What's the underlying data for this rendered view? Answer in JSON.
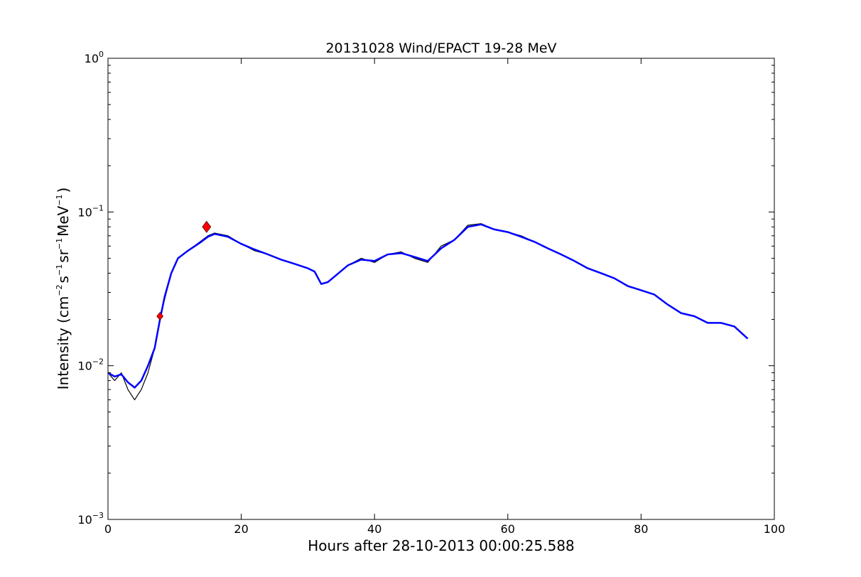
{
  "chart_data": {
    "type": "line",
    "title": "20131028 Wind/EPACT 19-28 MeV",
    "xlabel": "Hours after 28-10-2013 00:00:25.588",
    "ylabel": {
      "prefix": "Intensity (cm",
      "exp1": "−2",
      "part2": "s",
      "exp2": "−1",
      "part3": "sr",
      "exp3": "−1",
      "part4": "MeV",
      "exp4": "−1",
      "suffix": ")"
    },
    "xlim": [
      0,
      100
    ],
    "ylim": [
      0.001,
      1
    ],
    "yscale": "log",
    "grid": false,
    "x_ticks": [
      0,
      20,
      40,
      60,
      80,
      100
    ],
    "x_tick_labels": [
      "0",
      "20",
      "40",
      "60",
      "80",
      "100"
    ],
    "y_ticks": [
      {
        "value": 1,
        "base": "10",
        "exp": "0"
      },
      {
        "value": 0.1,
        "base": "10",
        "exp": "−1"
      },
      {
        "value": 0.01,
        "base": "10",
        "exp": "−2"
      },
      {
        "value": 0.001,
        "base": "10",
        "exp": "−3"
      }
    ],
    "series": [
      {
        "style": "raw",
        "color": "#000000",
        "x": [
          0,
          1,
          2,
          3,
          4,
          5,
          6,
          7,
          7.8,
          8.5,
          9.5,
          10.5,
          12,
          14,
          15,
          16,
          18,
          20,
          22,
          24,
          26,
          28,
          30,
          31,
          32,
          33,
          34,
          36,
          38,
          40,
          42,
          44,
          46,
          48,
          50,
          52,
          54,
          56,
          58,
          60,
          62,
          64,
          66,
          68,
          70,
          72,
          74,
          76,
          78,
          80,
          82,
          84,
          86,
          88,
          90,
          92,
          94,
          96
        ],
        "y": [
          0.009,
          0.008,
          0.009,
          0.007,
          0.006,
          0.007,
          0.009,
          0.013,
          0.02,
          0.027,
          0.04,
          0.05,
          0.056,
          0.065,
          0.07,
          0.073,
          0.07,
          0.062,
          0.056,
          0.053,
          0.049,
          0.046,
          0.043,
          0.041,
          0.034,
          0.035,
          0.038,
          0.045,
          0.05,
          0.047,
          0.053,
          0.055,
          0.05,
          0.047,
          0.06,
          0.066,
          0.082,
          0.084,
          0.077,
          0.074,
          0.07,
          0.064,
          0.058,
          0.053,
          0.048,
          0.043,
          0.04,
          0.037,
          0.033,
          0.031,
          0.029,
          0.025,
          0.022,
          0.021,
          0.019,
          0.019,
          0.018,
          0.015
        ]
      },
      {
        "style": "smoothed",
        "color": "#0000ff",
        "x": [
          0,
          1,
          2,
          3,
          4,
          5,
          6,
          7,
          7.8,
          8.5,
          9.5,
          10.5,
          12,
          14,
          15,
          16,
          18,
          20,
          22,
          24,
          26,
          28,
          30,
          31,
          32,
          33,
          34,
          36,
          38,
          40,
          42,
          44,
          46,
          48,
          50,
          52,
          54,
          56,
          58,
          60,
          62,
          64,
          66,
          68,
          70,
          72,
          74,
          76,
          78,
          80,
          82,
          84,
          86,
          88,
          90,
          92,
          94,
          96
        ],
        "y": [
          0.009,
          0.0085,
          0.0088,
          0.0078,
          0.0072,
          0.008,
          0.01,
          0.013,
          0.02,
          0.028,
          0.04,
          0.05,
          0.056,
          0.064,
          0.069,
          0.072,
          0.069,
          0.062,
          0.057,
          0.053,
          0.049,
          0.046,
          0.043,
          0.041,
          0.034,
          0.035,
          0.038,
          0.045,
          0.049,
          0.048,
          0.053,
          0.054,
          0.051,
          0.048,
          0.058,
          0.066,
          0.08,
          0.083,
          0.077,
          0.074,
          0.069,
          0.064,
          0.058,
          0.053,
          0.048,
          0.043,
          0.04,
          0.037,
          0.033,
          0.031,
          0.029,
          0.025,
          0.022,
          0.021,
          0.019,
          0.019,
          0.018,
          0.015
        ]
      }
    ],
    "markers": [
      {
        "x": 7.8,
        "y": 0.021,
        "color": "#ff0000",
        "shape": "diamond",
        "size": "small"
      },
      {
        "x": 14.8,
        "y": 0.08,
        "color": "#ff0000",
        "shape": "diamond",
        "size": "large"
      }
    ]
  }
}
